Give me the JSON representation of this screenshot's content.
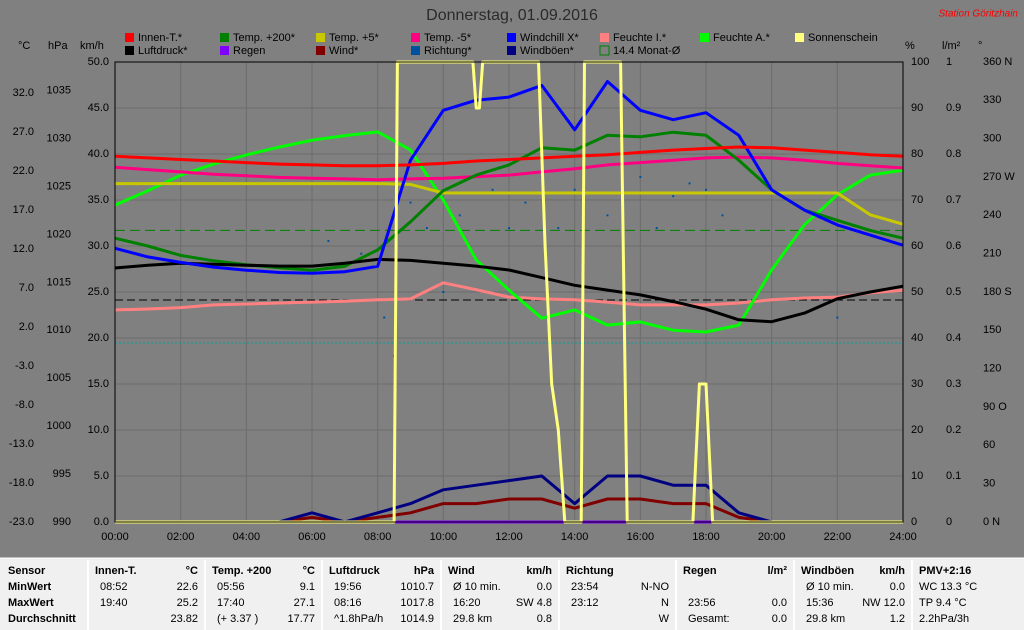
{
  "chart_data": {
    "type": "line",
    "title": "Donnerstag, 01.09.2016",
    "station": "Station Göritzhain",
    "x": [
      0,
      1,
      2,
      3,
      4,
      5,
      6,
      7,
      8,
      9,
      10,
      11,
      12,
      13,
      14,
      15,
      16,
      17,
      18,
      19,
      20,
      21,
      22,
      23,
      24
    ],
    "xlim": [
      0,
      24
    ],
    "xticks": [
      {
        "value": 0,
        "label": "00:00"
      },
      {
        "value": 2,
        "label": "02:00"
      },
      {
        "value": 4,
        "label": "04:00"
      },
      {
        "value": 6,
        "label": "06:00"
      },
      {
        "value": 8,
        "label": "08:00"
      },
      {
        "value": 10,
        "label": "10:00"
      },
      {
        "value": 12,
        "label": "12:00"
      },
      {
        "value": 14,
        "label": "14:00"
      },
      {
        "value": 16,
        "label": "16:00"
      },
      {
        "value": 18,
        "label": "18:00"
      },
      {
        "value": 20,
        "label": "20:00"
      },
      {
        "value": 22,
        "label": "22:00"
      },
      {
        "value": 24,
        "label": "24:00"
      }
    ],
    "grid": true,
    "axes": [
      {
        "unit": "°C",
        "ylim": [
          -23,
          36
        ],
        "yticks": [
          {
            "value": 32,
            "label": "32.0"
          },
          {
            "value": 27,
            "label": "27.0"
          },
          {
            "value": 22,
            "label": "22.0"
          },
          {
            "value": 17,
            "label": "17.0"
          },
          {
            "value": 12,
            "label": "12.0"
          },
          {
            "value": 7,
            "label": "7.0"
          },
          {
            "value": 2,
            "label": "2.0"
          },
          {
            "value": -3,
            "label": "-3.0"
          },
          {
            "value": -8,
            "label": "-8.0"
          },
          {
            "value": -13,
            "label": "-13.0"
          },
          {
            "value": -18,
            "label": "-18.0"
          },
          {
            "value": -23,
            "label": "-23.0"
          }
        ]
      },
      {
        "unit": "hPa",
        "ylim": [
          990,
          1038
        ],
        "yticks": [
          1035,
          1030,
          1025,
          1020,
          1015,
          1010,
          1005,
          1000,
          995,
          990
        ]
      },
      {
        "unit": "km/h",
        "ylim": [
          0,
          50
        ],
        "yticks": [
          {
            "value": 50,
            "label": "50.0"
          },
          {
            "value": 45,
            "label": "45.0"
          },
          {
            "value": 40,
            "label": "40.0"
          },
          {
            "value": 35,
            "label": "35.0"
          },
          {
            "value": 30,
            "label": "30.0"
          },
          {
            "value": 25,
            "label": "25.0"
          },
          {
            "value": 20,
            "label": "20.0"
          },
          {
            "value": 15,
            "label": "15.0"
          },
          {
            "value": 10,
            "label": "10.0"
          },
          {
            "value": 5,
            "label": "5.0"
          },
          {
            "value": 0,
            "label": "0.0"
          }
        ]
      },
      {
        "unit": "%",
        "ylim": [
          0,
          100
        ],
        "yticks": [
          100,
          90,
          80,
          70,
          60,
          50,
          40,
          30,
          20,
          10,
          0
        ]
      },
      {
        "unit": "l/m²",
        "ylim": [
          0,
          1
        ],
        "yticks": [
          1,
          0.9,
          0.8,
          0.7,
          0.6,
          0.5,
          0.4,
          0.3,
          0.2,
          0.1,
          0
        ]
      },
      {
        "unit": "°",
        "ylim": [
          0,
          360
        ],
        "yticks": [
          {
            "value": 360,
            "label": "360 N"
          },
          330,
          300,
          {
            "value": 270,
            "label": "270 W"
          },
          240,
          210,
          {
            "value": 180,
            "label": "180 S"
          },
          150,
          120,
          {
            "value": 90,
            "label": "90 O"
          },
          60,
          30,
          {
            "value": 0,
            "label": "0 N"
          }
        ]
      }
    ],
    "series": [
      {
        "name": "Innen-T.*",
        "color": "#ff0000",
        "axis": 0,
        "values": [
          23.9,
          23.7,
          23.5,
          23.3,
          23.1,
          22.9,
          22.8,
          22.7,
          22.7,
          22.8,
          23.0,
          23.3,
          23.5,
          23.7,
          23.9,
          24.1,
          24.4,
          24.7,
          24.9,
          25.1,
          25.0,
          24.7,
          24.4,
          24.1,
          23.9
        ]
      },
      {
        "name": "Temp. +200*",
        "color": "#008000",
        "axis": 0,
        "values": [
          13.4,
          12.4,
          11.2,
          10.5,
          10.0,
          9.6,
          9.3,
          9.8,
          11.9,
          15.5,
          19.5,
          21.5,
          22.8,
          25.0,
          24.7,
          26.6,
          26.4,
          27.0,
          26.6,
          23.4,
          19.6,
          17.0,
          15.7,
          14.4,
          13.4
        ]
      },
      {
        "name": "Temp. +5*",
        "color": "#c8c800",
        "axis": 0,
        "values": [
          20.4,
          20.4,
          20.4,
          20.4,
          20.4,
          20.4,
          20.4,
          20.4,
          20.4,
          20.3,
          19.2,
          19.2,
          19.2,
          19.2,
          19.2,
          19.2,
          19.2,
          19.2,
          19.2,
          19.2,
          19.2,
          19.2,
          19.2,
          16.4,
          15.2
        ]
      },
      {
        "name": "Temp. -5*",
        "color": "#ff0080",
        "axis": 0,
        "values": [
          22.5,
          22.2,
          21.9,
          21.6,
          21.4,
          21.2,
          21.1,
          21.0,
          20.9,
          21.0,
          21.1,
          21.3,
          21.5,
          21.9,
          22.3,
          22.8,
          23.1,
          23.4,
          23.7,
          23.8,
          23.7,
          23.4,
          23.0,
          22.7,
          22.4
        ]
      },
      {
        "name": "Windchill X*",
        "color": "#0000ff",
        "axis": 0,
        "values": [
          12.1,
          11.0,
          10.3,
          9.7,
          9.3,
          9.0,
          8.9,
          9.1,
          9.8,
          23.4,
          29.8,
          31.1,
          31.5,
          33.0,
          27.3,
          33.5,
          29.8,
          28.6,
          29.5,
          26.6,
          19.6,
          17.0,
          15.1,
          13.8,
          12.5
        ]
      },
      {
        "name": "Feuchte I.*",
        "color": "#ff8080",
        "axis": 3,
        "values": [
          46.1,
          46.3,
          46.6,
          47.2,
          47.4,
          47.6,
          47.8,
          48.0,
          48.3,
          48.5,
          52.0,
          50.5,
          48.9,
          48.5,
          48.3,
          47.8,
          47.2,
          47.2,
          47.2,
          47.6,
          48.3,
          48.7,
          48.9,
          49.8,
          50.4
        ]
      },
      {
        "name": "Feuchte A.*",
        "color": "#00ff00",
        "axis": 3,
        "values": [
          68.9,
          72.0,
          75.4,
          77.8,
          79.8,
          81.5,
          83.0,
          84.0,
          84.8,
          80.9,
          70.0,
          57.0,
          50.4,
          44.3,
          46.1,
          42.8,
          43.5,
          41.7,
          41.3,
          42.8,
          54.8,
          64.6,
          71.1,
          75.4,
          76.5
        ]
      },
      {
        "name": "Sonnenschein",
        "color": "#ffff80",
        "axis": 3,
        "x": [
          0,
          8.5,
          8.6,
          10.9,
          11.0,
          11.1,
          11.2,
          12.9,
          13.1,
          13.3,
          13.5,
          13.7,
          14.2,
          14.3,
          14.4,
          15.4,
          15.6,
          17.6,
          17.8,
          18.0,
          18.2,
          24
        ],
        "values": [
          0,
          0,
          100,
          100,
          90,
          90,
          100,
          100,
          60,
          30,
          20,
          0,
          0,
          100,
          100,
          100,
          0,
          0,
          30,
          30,
          0,
          0
        ]
      },
      {
        "name": "Luftdruck*",
        "color": "#000000",
        "axis": 1,
        "values": [
          1016.5,
          1016.8,
          1017.0,
          1016.9,
          1016.8,
          1016.7,
          1016.7,
          1017.0,
          1017.4,
          1017.3,
          1017.0,
          1016.7,
          1016.3,
          1015.5,
          1014.7,
          1014.2,
          1013.7,
          1013.0,
          1012.2,
          1011.1,
          1010.9,
          1011.8,
          1013.3,
          1014.0,
          1014.6
        ]
      },
      {
        "name": "Regen",
        "color": "#8000ff",
        "axis": 4,
        "values": [
          0,
          0,
          0,
          0,
          0,
          0,
          0,
          0,
          0,
          0,
          0,
          0,
          0,
          0,
          0,
          0,
          0,
          0,
          0,
          0,
          0,
          0,
          0,
          0,
          0
        ]
      },
      {
        "name": "Wind*",
        "color": "#800000",
        "axis": 2,
        "values": [
          0,
          0,
          0,
          0,
          0,
          0,
          0.5,
          0,
          0.5,
          1,
          2,
          2,
          2.5,
          2.5,
          1.5,
          2.5,
          2.5,
          2,
          2,
          0.5,
          0,
          0,
          0,
          0,
          0
        ]
      },
      {
        "name": "Richtung*",
        "color": "#0050a0",
        "axis": 5,
        "type": "scatter",
        "x": [
          6.0,
          6.5,
          7.5,
          8.2,
          8.5,
          9.0,
          9.5,
          10.0,
          10.5,
          11.0,
          11.5,
          12.0,
          12.5,
          13.0,
          13.5,
          14.0,
          15.0,
          16.0,
          16.5,
          17.0,
          17.5,
          18.0,
          18.5,
          22.0
        ],
        "values": [
          200,
          220,
          210,
          160,
          130,
          250,
          230,
          180,
          240,
          200,
          260,
          230,
          250,
          270,
          230,
          260,
          240,
          270,
          230,
          255,
          265,
          260,
          240,
          160
        ]
      },
      {
        "name": "Windböen*",
        "color": "#000080",
        "axis": 2,
        "values": [
          0,
          0,
          0,
          0,
          0,
          0,
          1,
          0,
          1,
          2,
          3.5,
          4,
          4.5,
          5,
          2,
          5,
          5,
          4,
          4,
          1,
          0,
          0,
          0,
          0,
          0
        ]
      }
    ],
    "monthly": {
      "label": "14.4 Monat-Ø",
      "value": 14.4,
      "axis": 0,
      "color": "#008000"
    }
  },
  "table": {
    "sensor": [
      "Sensor",
      "MinWert",
      "MaxWert",
      "Durchschnitt"
    ],
    "columns": [
      {
        "header": "Innen-T.",
        "unit": "°C",
        "rows": [
          [
            "08:52",
            "22.6"
          ],
          [
            "19:40",
            "25.2"
          ],
          [
            "23.82"
          ]
        ]
      },
      {
        "header": "Temp. +200",
        "unit": "°C",
        "rows": [
          [
            "05:56",
            "9.1"
          ],
          [
            "17:40",
            "27.1"
          ],
          [
            "(+ 3.37 )",
            "17.77"
          ]
        ]
      },
      {
        "header": "Luftdruck",
        "unit": "hPa",
        "rows": [
          [
            "19:56",
            "1010.7"
          ],
          [
            "08:16",
            "1017.8"
          ],
          [
            "^1.8hPa/h",
            "1014.9"
          ]
        ]
      },
      {
        "header": "Wind",
        "unit": "km/h",
        "rows": [
          [
            "Ø 10 min.",
            "0.0"
          ],
          [
            "16:20",
            "SW 4.8"
          ],
          [
            "29.8 km",
            "0.8"
          ]
        ]
      },
      {
        "header": "Richtung",
        "rows": [
          [
            "23:54",
            "N-NO"
          ],
          [
            "23:12",
            "N"
          ],
          [
            "W"
          ]
        ]
      },
      {
        "header": "Regen",
        "unit": "l/m²",
        "rows": [
          null,
          [
            "23:56",
            "0.0"
          ],
          [
            "Gesamt:",
            "0.0"
          ]
        ]
      },
      {
        "header": "Windböen",
        "unit": "km/h",
        "rows": [
          [
            "Ø 10 min.",
            "0.0"
          ],
          [
            "15:36",
            "NW 12.0"
          ],
          [
            "29.8 km",
            "1.2"
          ]
        ]
      },
      {
        "header": "PMV+2:16",
        "rows": [
          [
            "WC 13.3 °C"
          ],
          [
            "TP 9.4 °C"
          ],
          [
            "2.2hPa/3h"
          ]
        ]
      }
    ]
  }
}
